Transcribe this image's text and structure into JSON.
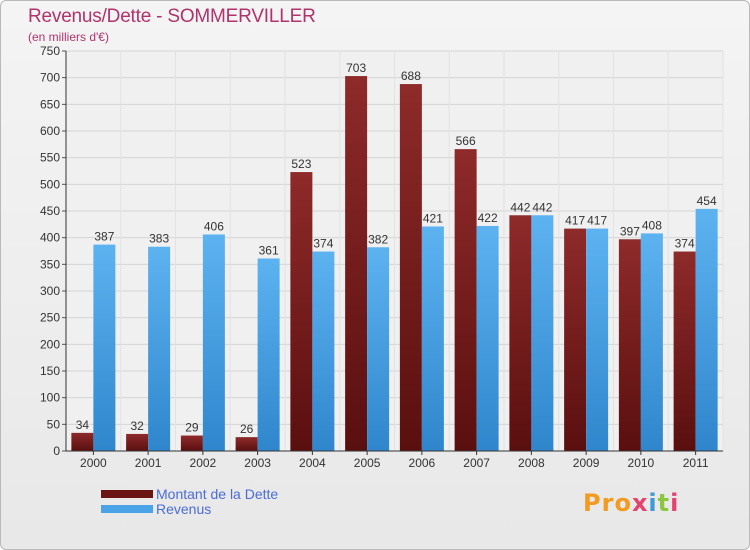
{
  "title": "Revenus/Dette - SOMMERVILLER",
  "subtitle": "(en milliers d'€)",
  "logo_text": "Proxiti",
  "chart_data": {
    "type": "bar",
    "categories": [
      "2000",
      "2001",
      "2002",
      "2003",
      "2004",
      "2005",
      "2006",
      "2007",
      "2008",
      "2009",
      "2010",
      "2011"
    ],
    "series": [
      {
        "name": "Montant de la Dette",
        "color": "#7a1c1c",
        "values": [
          34,
          32,
          29,
          26,
          523,
          703,
          688,
          566,
          442,
          417,
          397,
          374
        ]
      },
      {
        "name": "Revenus",
        "color": "#4aa3e6",
        "values": [
          387,
          383,
          406,
          361,
          374,
          382,
          421,
          422,
          442,
          417,
          408,
          454
        ]
      }
    ],
    "ylim": [
      0,
      750
    ],
    "yticks": [
      0,
      50,
      100,
      150,
      200,
      250,
      300,
      350,
      400,
      450,
      500,
      550,
      600,
      650,
      700,
      750
    ],
    "xlabel": "",
    "ylabel": "",
    "grid": true,
    "legend_position": "bottom-left"
  }
}
